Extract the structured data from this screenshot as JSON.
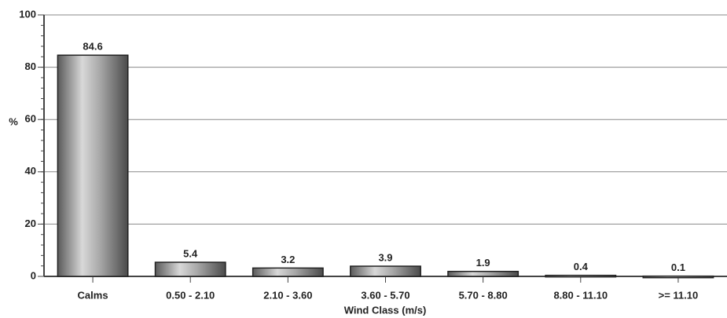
{
  "chart_data": {
    "type": "bar",
    "x_label": "Wind Class (m/s)",
    "y_label": "%",
    "categories": [
      "Calms",
      "0.50 - 2.10",
      "2.10 - 3.60",
      "3.60 - 5.70",
      "5.70 - 8.80",
      "8.80 - 11.10",
      ">= 11.10"
    ],
    "values": [
      84.6,
      5.4,
      3.2,
      3.9,
      1.9,
      0.4,
      0.1
    ],
    "color": "#8c8c8c",
    "ylim": [
      0,
      100
    ],
    "yticks": [
      0,
      20,
      40,
      60,
      80,
      100
    ],
    "grid": true
  }
}
